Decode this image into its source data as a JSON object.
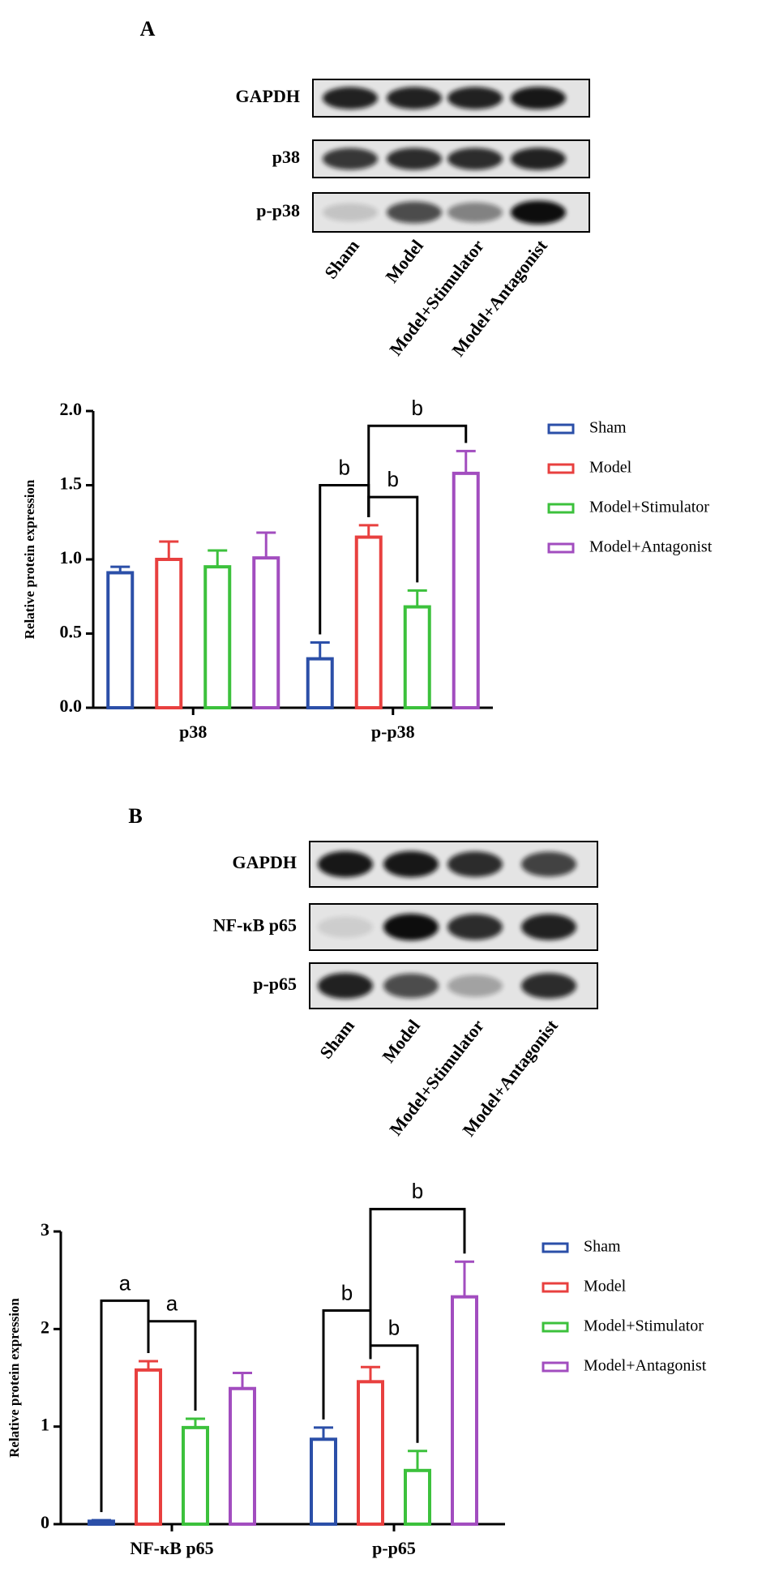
{
  "panels": [
    {
      "label": "A",
      "blot_rows": [
        "GAPDH",
        "p38",
        "p-p38"
      ],
      "lanes": [
        "Sham",
        "Model",
        "Model+Stimulator",
        "Model+Antagonist"
      ]
    },
    {
      "label": "B",
      "blot_rows": [
        "GAPDH",
        "NF-κB p65",
        "p-p65"
      ],
      "lanes": [
        "Sham",
        "Model",
        "Model+Stimulator",
        "Model+Antagonist"
      ]
    }
  ],
  "chart_data": [
    {
      "type": "bar",
      "ylabel": "Relative protein expression",
      "categories": [
        "p38",
        "p-p38"
      ],
      "series": [
        {
          "name": "Sham",
          "color": "#2b4fa8",
          "values": [
            0.91,
            0.33
          ],
          "errors": [
            0.04,
            0.11
          ]
        },
        {
          "name": "Model",
          "color": "#e8403f",
          "values": [
            1.0,
            1.15
          ],
          "errors": [
            0.12,
            0.08
          ]
        },
        {
          "name": "Model+Stimulator",
          "color": "#3cc13c",
          "values": [
            0.95,
            0.68
          ],
          "errors": [
            0.11,
            0.11
          ]
        },
        {
          "name": "Model+Antagonist",
          "color": "#a24dbf",
          "values": [
            1.01,
            1.58
          ],
          "errors": [
            0.17,
            0.15
          ]
        }
      ],
      "ylim": [
        0,
        2
      ],
      "yticks": [
        {
          "value": 0,
          "label": "0.0"
        },
        0.5,
        {
          "value": 1,
          "label": "1.0"
        },
        1.5,
        {
          "value": 2,
          "label": "2.0"
        }
      ],
      "annotations": [
        "b",
        "b",
        "b"
      ],
      "legend": "right"
    },
    {
      "type": "bar",
      "ylabel": "Relative protein expression",
      "categories": [
        "NF-κB p65",
        "p-p65"
      ],
      "series": [
        {
          "name": "Sham",
          "color": "#2b4fa8",
          "values": [
            0.03,
            0.87
          ],
          "errors": [
            0.01,
            0.12
          ]
        },
        {
          "name": "Model",
          "color": "#e8403f",
          "values": [
            1.58,
            1.46
          ],
          "errors": [
            0.09,
            0.15
          ]
        },
        {
          "name": "Model+Stimulator",
          "color": "#3cc13c",
          "values": [
            0.99,
            0.55
          ],
          "errors": [
            0.09,
            0.2
          ]
        },
        {
          "name": "Model+Antagonist",
          "color": "#a24dbf",
          "values": [
            1.39,
            2.33
          ],
          "errors": [
            0.16,
            0.36
          ]
        }
      ],
      "ylim": [
        0,
        3
      ],
      "yticks": [
        0,
        1,
        2,
        3
      ],
      "annotations": [
        "a",
        "a",
        "b",
        "b",
        "b"
      ],
      "legend": "right"
    }
  ]
}
